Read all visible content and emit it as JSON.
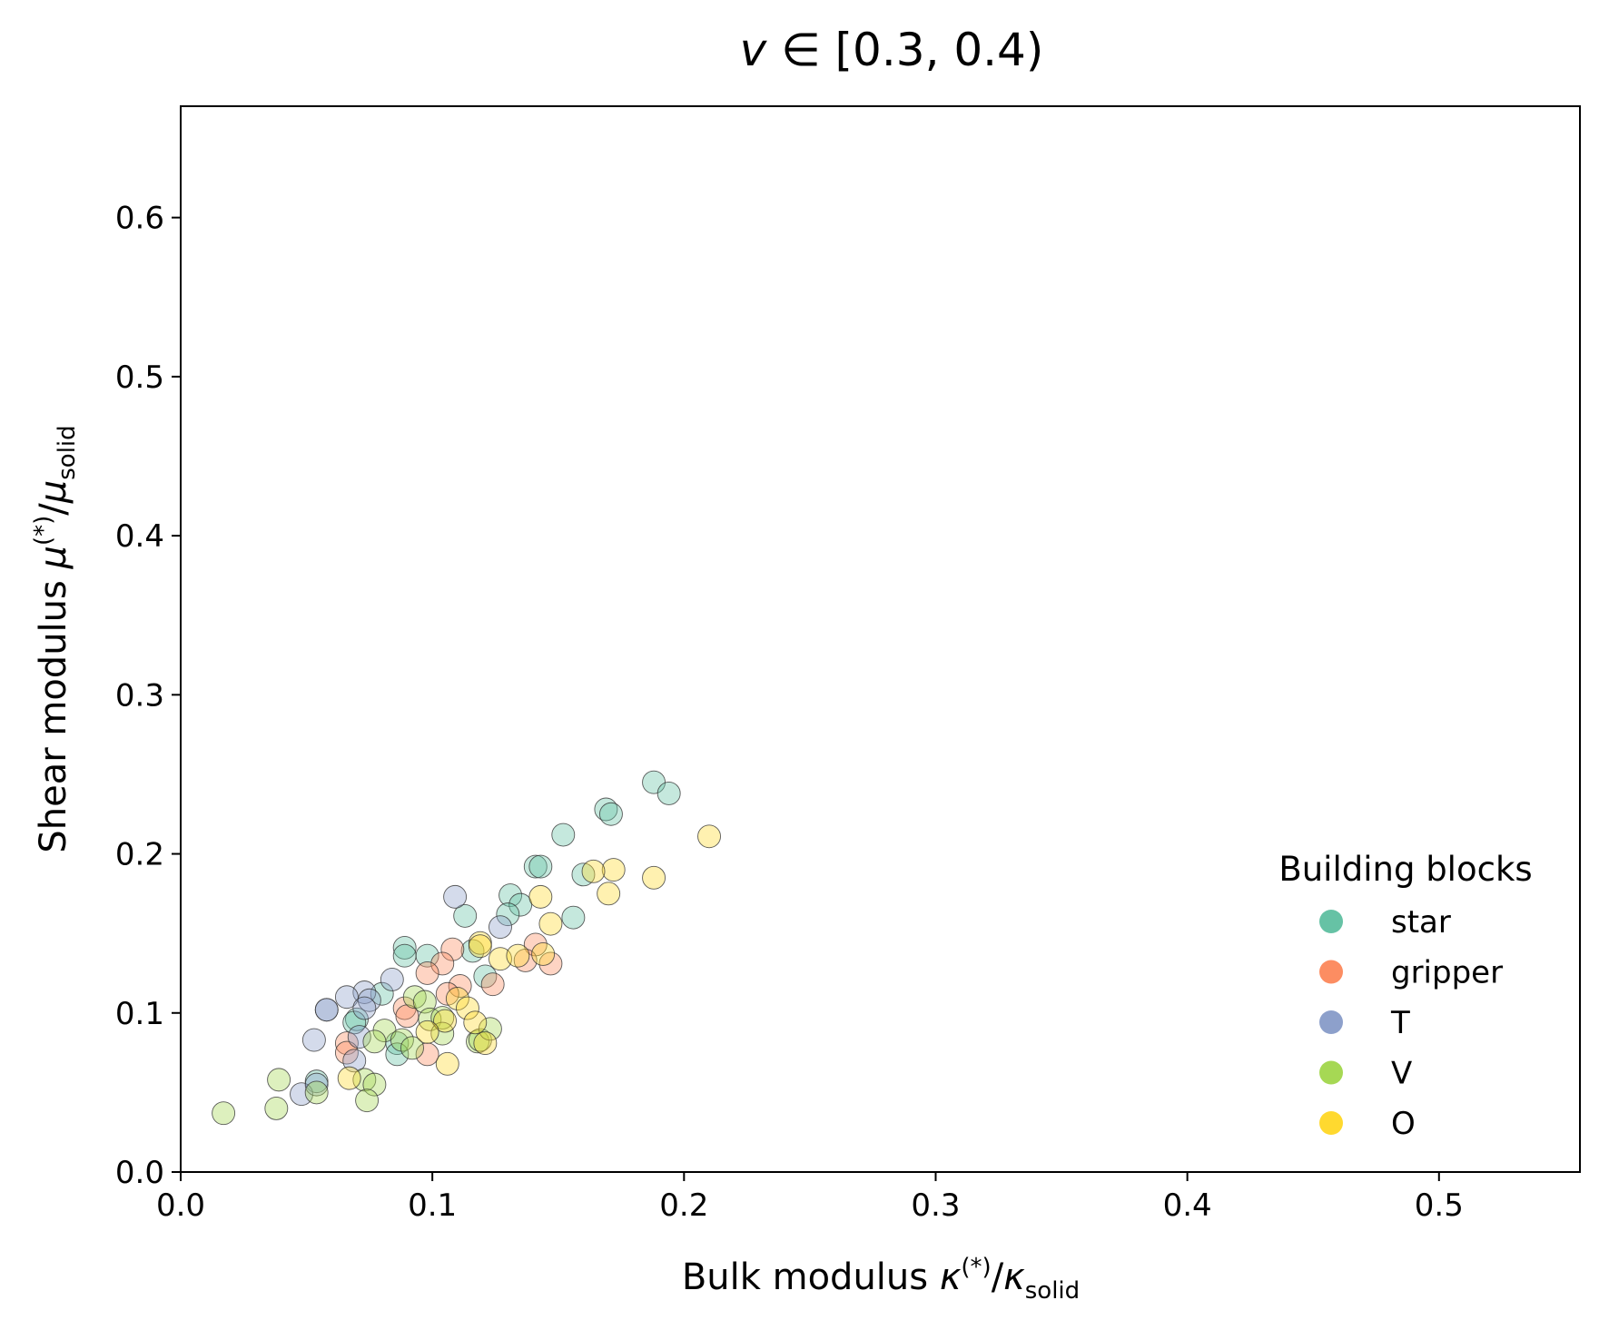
{
  "chart_data": {
    "type": "scatter",
    "title_var": "v",
    "title_rest": " ∈ [0.3, 0.4)",
    "xlabel_text": "Bulk modulus ",
    "xlabel_sym": "κ",
    "xlabel_sup": "(*)",
    "xlabel_div": "/",
    "xlabel_sym2": "κ",
    "xlabel_sub": "solid",
    "ylabel_text": "Shear modulus ",
    "ylabel_sym": "μ",
    "ylabel_sup": "(*)",
    "ylabel_div": "/",
    "ylabel_sym2": "μ",
    "ylabel_sub": "solid",
    "xlim": [
      0.0,
      0.556
    ],
    "ylim": [
      0.0,
      0.67
    ],
    "xticks": [
      0.0,
      0.1,
      0.2,
      0.3,
      0.4,
      0.5
    ],
    "yticks": [
      0.0,
      0.1,
      0.2,
      0.3,
      0.4,
      0.5,
      0.6
    ],
    "xtick_labels": [
      "0.0",
      "0.1",
      "0.2",
      "0.3",
      "0.4",
      "0.5"
    ],
    "ytick_labels": [
      "0.0",
      "0.1",
      "0.2",
      "0.3",
      "0.4",
      "0.5",
      "0.6"
    ],
    "grid": false,
    "legend": {
      "title": "Building blocks",
      "placement": "lower-right",
      "entries": [
        "star",
        "gripper",
        "T",
        "V",
        "O"
      ]
    },
    "series": [
      {
        "name": "star",
        "color": "#66c2a5",
        "points": [
          [
            0.188,
            0.245
          ],
          [
            0.194,
            0.238
          ],
          [
            0.169,
            0.228
          ],
          [
            0.171,
            0.225
          ],
          [
            0.152,
            0.212
          ],
          [
            0.141,
            0.192
          ],
          [
            0.143,
            0.192
          ],
          [
            0.16,
            0.187
          ],
          [
            0.156,
            0.16
          ],
          [
            0.131,
            0.174
          ],
          [
            0.135,
            0.168
          ],
          [
            0.13,
            0.162
          ],
          [
            0.113,
            0.161
          ],
          [
            0.089,
            0.141
          ],
          [
            0.089,
            0.136
          ],
          [
            0.098,
            0.136
          ],
          [
            0.116,
            0.139
          ],
          [
            0.121,
            0.123
          ],
          [
            0.08,
            0.112
          ],
          [
            0.07,
            0.096
          ],
          [
            0.069,
            0.094
          ],
          [
            0.086,
            0.081
          ],
          [
            0.086,
            0.074
          ],
          [
            0.054,
            0.057
          ]
        ]
      },
      {
        "name": "gripper",
        "color": "#fc8d62",
        "points": [
          [
            0.141,
            0.143
          ],
          [
            0.147,
            0.131
          ],
          [
            0.137,
            0.133
          ],
          [
            0.108,
            0.14
          ],
          [
            0.104,
            0.131
          ],
          [
            0.098,
            0.125
          ],
          [
            0.111,
            0.117
          ],
          [
            0.124,
            0.118
          ],
          [
            0.106,
            0.112
          ],
          [
            0.089,
            0.103
          ],
          [
            0.09,
            0.098
          ],
          [
            0.066,
            0.081
          ],
          [
            0.066,
            0.075
          ],
          [
            0.098,
            0.074
          ]
        ]
      },
      {
        "name": "T",
        "color": "#8da0cb",
        "points": [
          [
            0.109,
            0.173
          ],
          [
            0.127,
            0.154
          ],
          [
            0.084,
            0.121
          ],
          [
            0.073,
            0.113
          ],
          [
            0.075,
            0.108
          ],
          [
            0.066,
            0.11
          ],
          [
            0.073,
            0.103
          ],
          [
            0.058,
            0.102
          ],
          [
            0.058,
            0.102
          ],
          [
            0.053,
            0.083
          ],
          [
            0.071,
            0.085
          ],
          [
            0.069,
            0.07
          ],
          [
            0.048,
            0.049
          ],
          [
            0.054,
            0.055
          ]
        ]
      },
      {
        "name": "V",
        "color": "#a6d854",
        "points": [
          [
            0.093,
            0.11
          ],
          [
            0.097,
            0.107
          ],
          [
            0.099,
            0.096
          ],
          [
            0.104,
            0.097
          ],
          [
            0.081,
            0.089
          ],
          [
            0.088,
            0.083
          ],
          [
            0.077,
            0.082
          ],
          [
            0.092,
            0.078
          ],
          [
            0.104,
            0.087
          ],
          [
            0.118,
            0.082
          ],
          [
            0.119,
            0.083
          ],
          [
            0.123,
            0.09
          ],
          [
            0.039,
            0.058
          ],
          [
            0.054,
            0.05
          ],
          [
            0.073,
            0.058
          ],
          [
            0.077,
            0.055
          ],
          [
            0.074,
            0.045
          ],
          [
            0.038,
            0.04
          ],
          [
            0.017,
            0.037
          ]
        ]
      },
      {
        "name": "O",
        "color": "#ffd92f",
        "points": [
          [
            0.21,
            0.211
          ],
          [
            0.172,
            0.19
          ],
          [
            0.164,
            0.189
          ],
          [
            0.188,
            0.185
          ],
          [
            0.17,
            0.175
          ],
          [
            0.143,
            0.173
          ],
          [
            0.147,
            0.156
          ],
          [
            0.119,
            0.144
          ],
          [
            0.119,
            0.142
          ],
          [
            0.127,
            0.134
          ],
          [
            0.134,
            0.136
          ],
          [
            0.144,
            0.137
          ],
          [
            0.11,
            0.109
          ],
          [
            0.114,
            0.103
          ],
          [
            0.117,
            0.094
          ],
          [
            0.105,
            0.095
          ],
          [
            0.098,
            0.088
          ],
          [
            0.121,
            0.081
          ],
          [
            0.067,
            0.059
          ],
          [
            0.106,
            0.068
          ]
        ]
      }
    ]
  }
}
